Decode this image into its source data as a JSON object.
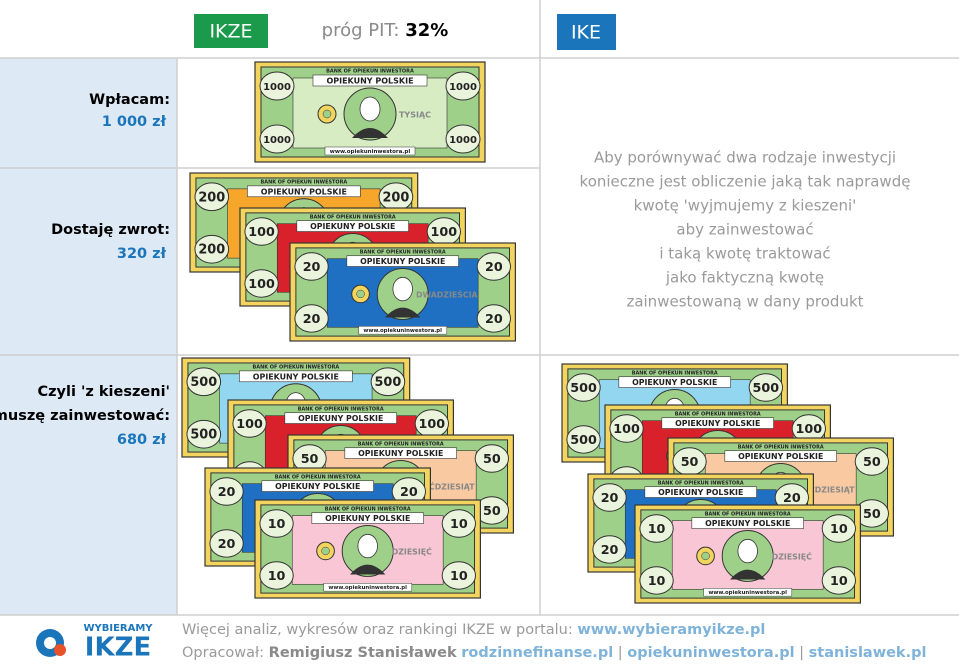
{
  "header": {
    "ikze": "IKZE",
    "threshold_label": "próg PIT:",
    "threshold_value": "32%",
    "ike": "IKE"
  },
  "banknote": {
    "bank": "BANK OF OPIEKUN INWESTORA",
    "title": "OPIEKUNY POLSKIE",
    "url": "www.opiekuninwestora.pl"
  },
  "rows": [
    {
      "label": [
        "Wpłacam:"
      ],
      "amount": "1 000 zł",
      "ikze_notes": [
        {
          "denomination": "1000",
          "word": "TYSIĄC",
          "color": "#d8ecc4"
        }
      ]
    },
    {
      "label": [
        "Dostaję zwrot:"
      ],
      "amount": "320 zł",
      "ikze_notes": [
        {
          "denomination": "200",
          "color": "#f6a62a"
        },
        {
          "denomination": "100",
          "color": "#d8212b"
        },
        {
          "denomination": "20",
          "word": "DWADZIEŚCIA",
          "color": "#1f70c2"
        }
      ]
    },
    {
      "label": [
        "Czyli 'z kieszeni'",
        "muszę zainwestować:"
      ],
      "amount": "680 zł",
      "ikze_notes": [
        {
          "denomination": "500",
          "color": "#92d6ef"
        },
        {
          "denomination": "100",
          "color": "#d8212b"
        },
        {
          "denomination": "50",
          "word": "PIĘĆDZIESIĄT",
          "color": "#f9caa2"
        },
        {
          "denomination": "20",
          "color": "#1f70c2"
        },
        {
          "denomination": "10",
          "word": "DZIESIĘĆ",
          "color": "#f8c6d5"
        }
      ],
      "ike_notes": [
        {
          "denomination": "500",
          "color": "#92d6ef"
        },
        {
          "denomination": "100",
          "color": "#d8212b"
        },
        {
          "denomination": "50",
          "word": "PIĘĆDZIESIĄT",
          "color": "#f9caa2"
        },
        {
          "denomination": "20",
          "color": "#1f70c2"
        },
        {
          "denomination": "10",
          "word": "DZIESIĘĆ",
          "color": "#f8c6d5"
        }
      ]
    }
  ],
  "explanation": [
    "Aby porównywać dwa rodzaje inwestycji",
    "konieczne jest obliczenie jaką tak naprawdę",
    "kwotę 'wyjmujemy z kieszeni'",
    "aby zainwestować",
    "i taką kwotę traktować",
    "jako faktyczną kwotę",
    "zainwestowaną w dany produkt"
  ],
  "footer": {
    "logo_top": "WYBIERAMY",
    "logo_main": "IKZE",
    "line1": {
      "text": "Więcej analiz, wykresów oraz rankingi IKZE w portalu:",
      "link": "www.wybieramyikze.pl"
    },
    "line2": {
      "text": "Opracował:",
      "author": "Remigiusz Stanisławek",
      "links": [
        "rodzinnefinanse.pl",
        "opiekuninwestora.pl",
        "stanislawek.pl"
      ],
      "separator": "|"
    }
  }
}
